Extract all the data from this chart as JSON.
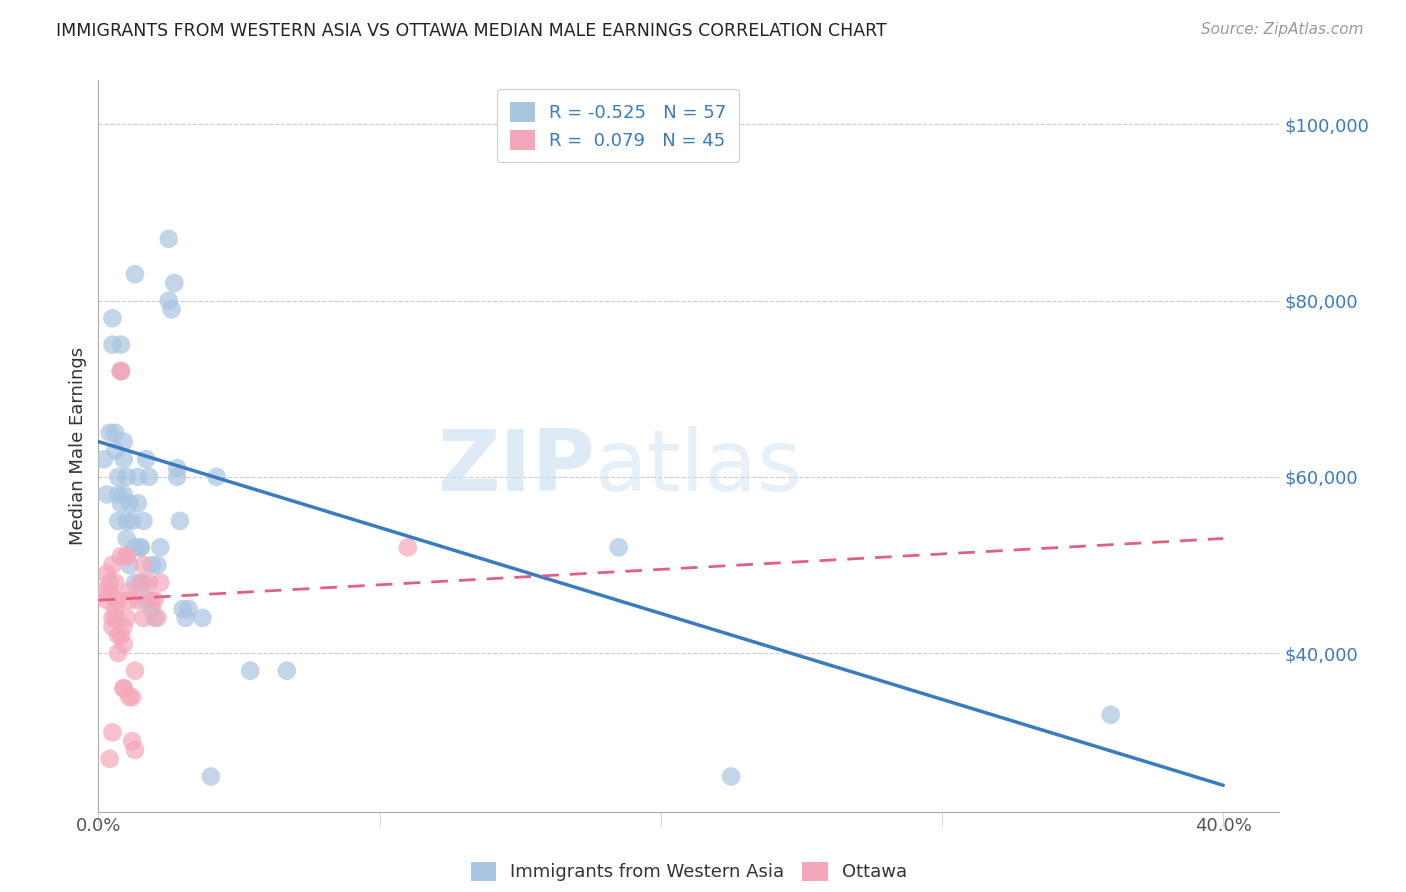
{
  "title": "IMMIGRANTS FROM WESTERN ASIA VS OTTAWA MEDIAN MALE EARNINGS CORRELATION CHART",
  "source": "Source: ZipAtlas.com",
  "ylabel": "Median Male Earnings",
  "right_yticks": [
    "$100,000",
    "$80,000",
    "$60,000",
    "$40,000"
  ],
  "right_ytick_vals": [
    100000,
    80000,
    60000,
    40000
  ],
  "legend_label1": "Immigrants from Western Asia",
  "legend_label2": "Ottawa",
  "R1": "-0.525",
  "N1": "57",
  "R2": "0.079",
  "N2": "45",
  "blue_color": "#a8c4e0",
  "pink_color": "#f4a7b9",
  "line_blue": "#3a7bbf",
  "line_pink": "#e06080",
  "blue_scatter": [
    [
      0.002,
      62000
    ],
    [
      0.003,
      58000
    ],
    [
      0.004,
      65000
    ],
    [
      0.005,
      75000
    ],
    [
      0.005,
      78000
    ],
    [
      0.006,
      63000
    ],
    [
      0.006,
      65000
    ],
    [
      0.007,
      60000
    ],
    [
      0.007,
      58000
    ],
    [
      0.007,
      55000
    ],
    [
      0.008,
      72000
    ],
    [
      0.008,
      75000
    ],
    [
      0.008,
      57000
    ],
    [
      0.009,
      64000
    ],
    [
      0.009,
      62000
    ],
    [
      0.009,
      58000
    ],
    [
      0.01,
      55000
    ],
    [
      0.01,
      60000
    ],
    [
      0.01,
      53000
    ],
    [
      0.011,
      57000
    ],
    [
      0.011,
      50000
    ],
    [
      0.012,
      55000
    ],
    [
      0.013,
      83000
    ],
    [
      0.013,
      52000
    ],
    [
      0.013,
      48000
    ],
    [
      0.014,
      60000
    ],
    [
      0.014,
      57000
    ],
    [
      0.015,
      52000
    ],
    [
      0.015,
      52000
    ],
    [
      0.016,
      55000
    ],
    [
      0.016,
      48000
    ],
    [
      0.017,
      46000
    ],
    [
      0.017,
      62000
    ],
    [
      0.018,
      60000
    ],
    [
      0.019,
      50000
    ],
    [
      0.019,
      45000
    ],
    [
      0.02,
      44000
    ],
    [
      0.021,
      50000
    ],
    [
      0.022,
      52000
    ],
    [
      0.025,
      87000
    ],
    [
      0.025,
      80000
    ],
    [
      0.026,
      79000
    ],
    [
      0.027,
      82000
    ],
    [
      0.028,
      61000
    ],
    [
      0.028,
      60000
    ],
    [
      0.029,
      55000
    ],
    [
      0.03,
      45000
    ],
    [
      0.031,
      44000
    ],
    [
      0.032,
      45000
    ],
    [
      0.037,
      44000
    ],
    [
      0.04,
      26000
    ],
    [
      0.042,
      60000
    ],
    [
      0.054,
      38000
    ],
    [
      0.067,
      38000
    ],
    [
      0.185,
      52000
    ],
    [
      0.225,
      26000
    ],
    [
      0.36,
      33000
    ]
  ],
  "pink_scatter": [
    [
      0.002,
      47000
    ],
    [
      0.003,
      49000
    ],
    [
      0.003,
      46000
    ],
    [
      0.004,
      48000
    ],
    [
      0.004,
      47000
    ],
    [
      0.005,
      50000
    ],
    [
      0.005,
      44000
    ],
    [
      0.005,
      43000
    ],
    [
      0.006,
      45000
    ],
    [
      0.006,
      46000
    ],
    [
      0.006,
      48000
    ],
    [
      0.006,
      44000
    ],
    [
      0.007,
      42000
    ],
    [
      0.007,
      40000
    ],
    [
      0.007,
      46000
    ],
    [
      0.008,
      72000
    ],
    [
      0.008,
      72000
    ],
    [
      0.008,
      51000
    ],
    [
      0.008,
      42000
    ],
    [
      0.009,
      43000
    ],
    [
      0.009,
      36000
    ],
    [
      0.009,
      36000
    ],
    [
      0.009,
      41000
    ],
    [
      0.01,
      44000
    ],
    [
      0.01,
      51000
    ],
    [
      0.01,
      51000
    ],
    [
      0.011,
      47000
    ],
    [
      0.011,
      46000
    ],
    [
      0.011,
      35000
    ],
    [
      0.012,
      35000
    ],
    [
      0.012,
      30000
    ],
    [
      0.013,
      29000
    ],
    [
      0.013,
      38000
    ],
    [
      0.014,
      46000
    ],
    [
      0.015,
      48000
    ],
    [
      0.016,
      50000
    ],
    [
      0.016,
      44000
    ],
    [
      0.018,
      48000
    ],
    [
      0.019,
      46000
    ],
    [
      0.02,
      46000
    ],
    [
      0.021,
      44000
    ],
    [
      0.022,
      48000
    ],
    [
      0.11,
      52000
    ],
    [
      0.005,
      31000
    ],
    [
      0.004,
      28000
    ]
  ],
  "xlim": [
    0,
    0.42
  ],
  "ylim": [
    22000,
    105000
  ],
  "blue_line_x": [
    0.0,
    0.4
  ],
  "blue_line_y": [
    64000,
    25000
  ],
  "pink_line_x": [
    0.0,
    0.4
  ],
  "pink_line_y": [
    46000,
    53000
  ],
  "watermark_zip": "ZIP",
  "watermark_atlas": "atlas",
  "bg_color": "#ffffff"
}
